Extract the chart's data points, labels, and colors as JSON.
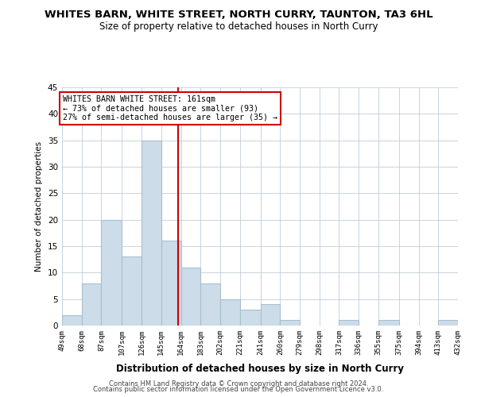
{
  "title": "WHITES BARN, WHITE STREET, NORTH CURRY, TAUNTON, TA3 6HL",
  "subtitle": "Size of property relative to detached houses in North Curry",
  "xlabel": "Distribution of detached houses by size in North Curry",
  "ylabel": "Number of detached properties",
  "bar_color": "#ccdce8",
  "bar_edgecolor": "#a8c0d0",
  "bin_edges": [
    49,
    68,
    87,
    107,
    126,
    145,
    164,
    183,
    202,
    221,
    241,
    260,
    279,
    298,
    317,
    336,
    355,
    375,
    394,
    413,
    432
  ],
  "bin_labels": [
    "49sqm",
    "68sqm",
    "87sqm",
    "107sqm",
    "126sqm",
    "145sqm",
    "164sqm",
    "183sqm",
    "202sqm",
    "221sqm",
    "241sqm",
    "260sqm",
    "279sqm",
    "298sqm",
    "317sqm",
    "336sqm",
    "355sqm",
    "375sqm",
    "394sqm",
    "413sqm",
    "432sqm"
  ],
  "counts": [
    2,
    8,
    20,
    13,
    35,
    16,
    11,
    8,
    5,
    3,
    4,
    1,
    0,
    0,
    1,
    0,
    1,
    0,
    0,
    1
  ],
  "property_size": 161,
  "vline_color": "#cc0000",
  "annotation_title": "WHITES BARN WHITE STREET: 161sqm",
  "annotation_line1": "← 73% of detached houses are smaller (93)",
  "annotation_line2": "27% of semi-detached houses are larger (35) →",
  "annotation_box_color": "#ffffff",
  "annotation_box_edgecolor": "#cc0000",
  "ylim": [
    0,
    45
  ],
  "yticks": [
    0,
    5,
    10,
    15,
    20,
    25,
    30,
    35,
    40,
    45
  ],
  "footer1": "Contains HM Land Registry data © Crown copyright and database right 2024.",
  "footer2": "Contains public sector information licensed under the Open Government Licence v3.0.",
  "background_color": "#ffffff",
  "grid_color": "#c0cdd8"
}
